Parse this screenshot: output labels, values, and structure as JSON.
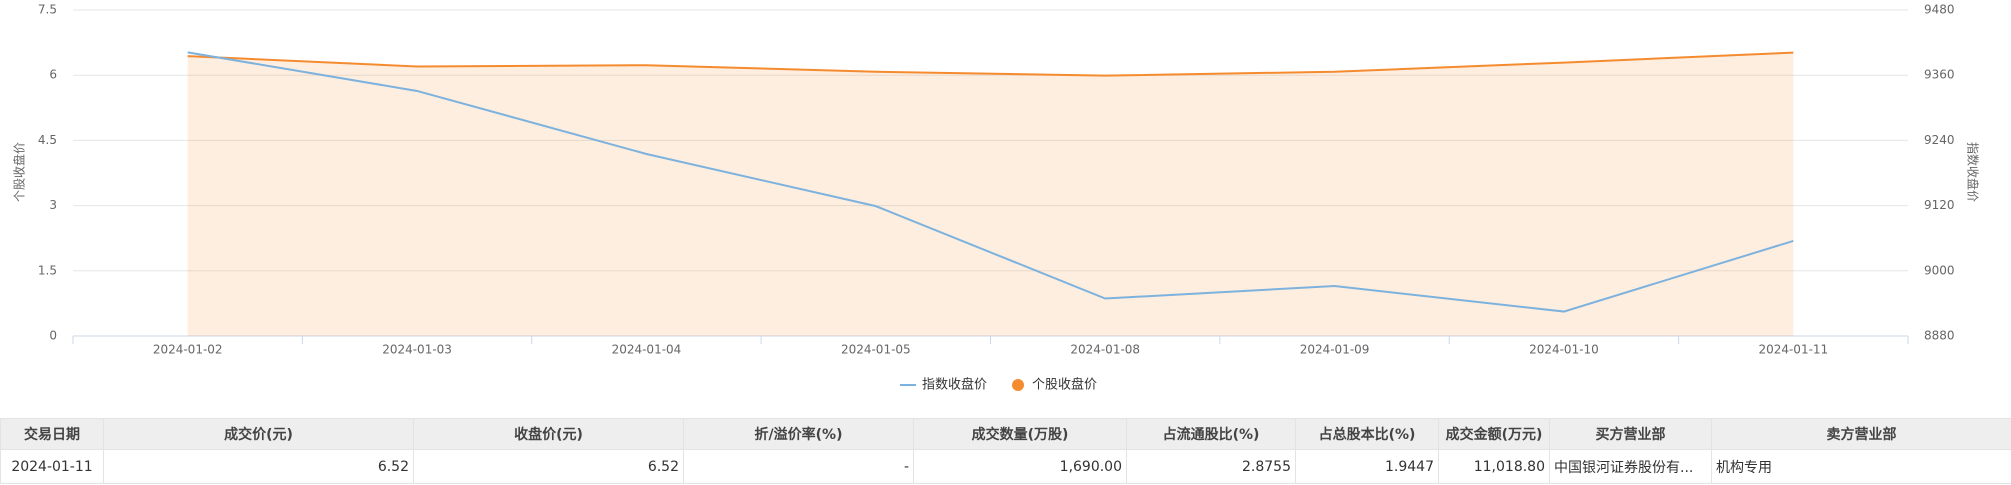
{
  "chart_data": {
    "type": "line",
    "categories": [
      "2024-01-02",
      "2024-01-03",
      "2024-01-04",
      "2024-01-05",
      "2024-01-08",
      "2024-01-09",
      "2024-01-10",
      "2024-01-11"
    ],
    "y_label": "个股收盘价",
    "y2_label": "指数收盘价",
    "ylim": [
      0,
      7.5
    ],
    "yticks": [
      0,
      1.5,
      3,
      4.5,
      6,
      7.5
    ],
    "y2lim": [
      8880,
      9480
    ],
    "y2ticks": [
      8880,
      9000,
      9120,
      9240,
      9360,
      9480
    ],
    "grid": true,
    "legend": "bottom",
    "series": [
      {
        "name": "指数收盘价",
        "color": "#7cb2dd",
        "axis": "y2",
        "values": [
          9402,
          9331,
          9215,
          9119,
          8949,
          8972,
          8925,
          9055
        ]
      },
      {
        "name": "个股收盘价",
        "color": "#f58b2f",
        "area": true,
        "values": [
          6.44,
          6.2,
          6.23,
          6.08,
          5.99,
          6.08,
          6.29,
          6.52
        ]
      }
    ]
  },
  "table": {
    "header": [
      "交易日期",
      "成交价(元)",
      "收盘价(元)",
      "折/溢价率(%)",
      "成交数量(万股)",
      "占流通股比(%)",
      "占总股本比(%)",
      "成交金额(万元)",
      "买方营业部",
      "卖方营业部"
    ],
    "rows": [
      [
        "2024-01-11",
        "6.52",
        "6.52",
        "-",
        "1,690.00",
        "2.8755",
        "1.9447",
        "11,018.80",
        "中国银河证券股份有...",
        "机构专用"
      ]
    ]
  }
}
